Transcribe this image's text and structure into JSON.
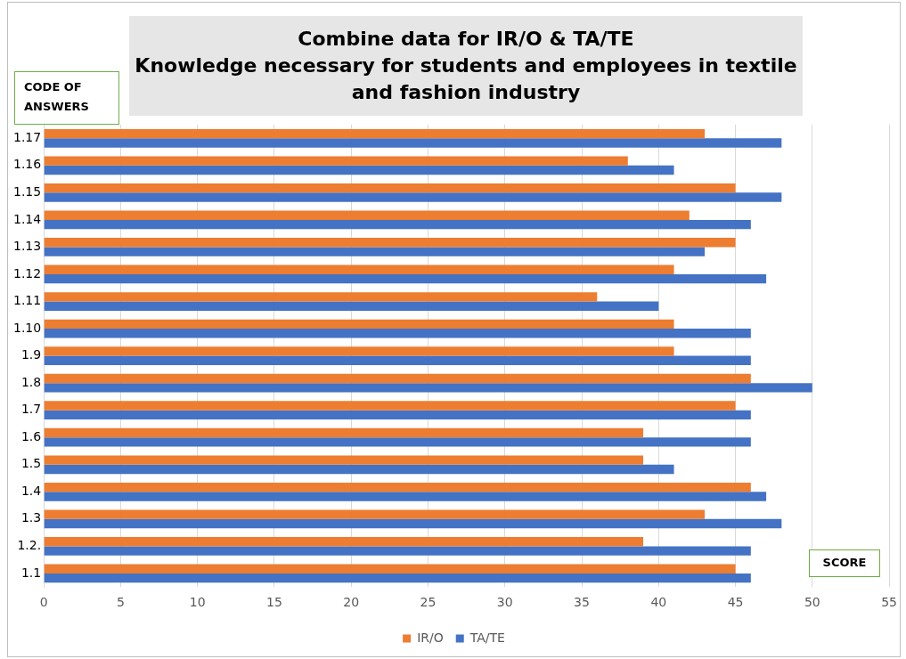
{
  "chart_data": {
    "type": "bar",
    "orientation": "horizontal",
    "title": "Combine data for IR/O & TA/TE",
    "subtitle": "Knowledge necessary for students and employees in textile and fashion industry",
    "xlabel": "SCORE",
    "ylabel": "CODE OF ANSWERS",
    "categories": [
      "1.17",
      "1.16",
      "1.15",
      "1.14",
      "1.13",
      "1.12",
      "1.11",
      "1.10",
      "1.9",
      "1.8",
      "1.7",
      "1.6",
      "1.5",
      "1.4",
      "1.3",
      "1.2.",
      "1.1"
    ],
    "series": [
      {
        "name": "IR/O",
        "color": "#ed7d31",
        "values": [
          43,
          38,
          45,
          42,
          45,
          41,
          36,
          41,
          41,
          46,
          45,
          39,
          39,
          46,
          43,
          39,
          45
        ]
      },
      {
        "name": "TA/TE",
        "color": "#4472c4",
        "values": [
          48,
          41,
          48,
          46,
          43,
          47,
          40,
          46,
          46,
          50,
          46,
          46,
          41,
          47,
          48,
          46,
          46
        ]
      }
    ],
    "xlim": [
      0,
      55
    ],
    "xticks": [
      0,
      5,
      10,
      15,
      20,
      25,
      30,
      35,
      40,
      45,
      50,
      55
    ],
    "grid": "x",
    "legend": "bottom"
  }
}
